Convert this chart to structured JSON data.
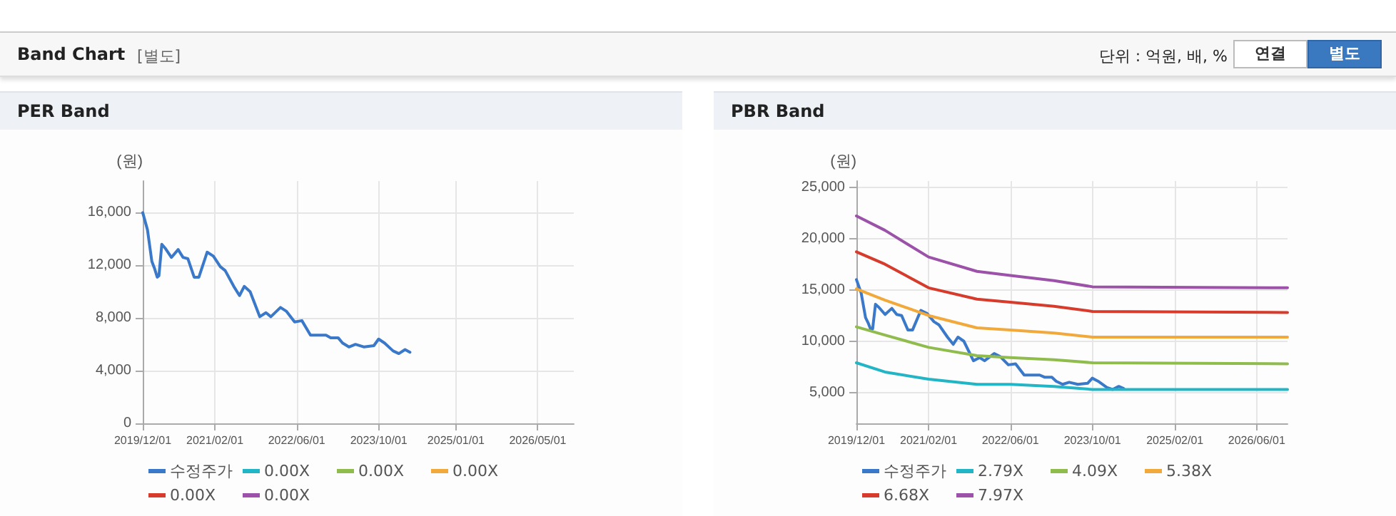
{
  "chart_data": [
    {
      "type": "other",
      "title": "Band Chart",
      "subtitle": "[별도]",
      "annotations": [
        "단위 : 억원, 배, %",
        "연결",
        "별도"
      ]
    },
    {
      "type": "line",
      "title": "PER Band",
      "ylabel": "(원)",
      "ylim": [
        0,
        18400
      ],
      "yticks": [
        0,
        {
          "value": 4000,
          "label": "4,000"
        },
        {
          "value": 8000,
          "label": "8,000"
        },
        {
          "value": 12000,
          "label": "12,000"
        },
        {
          "value": 16000,
          "label": "16,000"
        }
      ],
      "xlim": [
        "2019-12-01",
        "2026-12-01"
      ],
      "xticks": [
        {
          "value": "2019-12-01",
          "label": "2019/12/01"
        },
        {
          "value": "2021-02-01",
          "label": "2021/02/01"
        },
        {
          "value": "2022-06-01",
          "label": "2022/06/01"
        },
        {
          "value": "2023-10-01",
          "label": "2023/10/01"
        },
        {
          "value": "2025-01-01",
          "label": "2025/01/01"
        },
        {
          "value": "2026-05-01",
          "label": "2026/05/01"
        }
      ],
      "grid": true,
      "legend": "bottom",
      "marker": "none",
      "line_style": "solid",
      "series": [
        {
          "name": "수정주가",
          "color": "#3a78c9",
          "x": [
            "2019-12-01",
            "2019-12-29",
            "2020-01-24",
            "2020-02-08",
            "2020-02-25",
            "2020-03-06",
            "2020-03-23",
            "2020-04-12",
            "2020-05-19",
            "2020-06-28",
            "2020-07-27",
            "2020-08-25",
            "2020-10-01",
            "2020-10-29",
            "2020-12-17",
            "2021-01-23",
            "2021-03-05",
            "2021-04-03",
            "2021-05-24",
            "2021-06-27",
            "2021-07-25",
            "2021-08-29",
            "2021-10-25",
            "2021-12-01",
            "2021-12-30",
            "2022-02-25",
            "2022-04-02",
            "2022-05-20",
            "2022-07-02",
            "2022-08-22",
            "2022-09-26",
            "2022-11-22",
            "2022-12-20",
            "2023-02-02",
            "2023-02-28",
            "2023-04-07",
            "2023-05-16",
            "2023-07-06",
            "2023-09-02",
            "2023-09-30",
            "2023-11-04",
            "2023-12-25",
            "2024-01-28",
            "2024-03-05",
            "2024-04-03"
          ],
          "values": [
            16000,
            14700,
            12300,
            11800,
            11100,
            11200,
            13600,
            13300,
            12600,
            13200,
            12600,
            12500,
            11100,
            11100,
            13000,
            12700,
            11900,
            11600,
            10400,
            9700,
            10400,
            10000,
            8100,
            8400,
            8100,
            8800,
            8500,
            7700,
            7800,
            6700,
            6700,
            6700,
            6500,
            6500,
            6100,
            5800,
            6000,
            5800,
            5900,
            6400,
            6100,
            5500,
            5300,
            5600,
            5400
          ]
        },
        {
          "name": "0.00X",
          "color": "#22b5c6"
        },
        {
          "name": "0.00X",
          "color": "#8fbc4c"
        },
        {
          "name": "0.00X",
          "color": "#f2a93b"
        },
        {
          "name": "0.00X",
          "color": "#d63b2b"
        },
        {
          "name": "0.00X",
          "color": "#9b52a8"
        }
      ]
    },
    {
      "type": "line",
      "title": "PBR Band",
      "ylabel": "(원)",
      "ylim": [
        2000,
        25600
      ],
      "yticks": [
        {
          "value": 5000,
          "label": "5,000"
        },
        {
          "value": 10000,
          "label": "10,000"
        },
        {
          "value": 15000,
          "label": "15,000"
        },
        {
          "value": 20000,
          "label": "20,000"
        },
        {
          "value": 25000,
          "label": "25,000"
        }
      ],
      "xlim": [
        "2019-12-01",
        "2026-12-01"
      ],
      "xticks": [
        {
          "value": "2019-12-01",
          "label": "2019/12/01"
        },
        {
          "value": "2021-02-01",
          "label": "2021/02/01"
        },
        {
          "value": "2022-06-01",
          "label": "2022/06/01"
        },
        {
          "value": "2023-10-01",
          "label": "2023/10/01"
        },
        {
          "value": "2025-02-01",
          "label": "2025/02/01"
        },
        {
          "value": "2026-06-01",
          "label": "2026/06/01"
        }
      ],
      "grid": true,
      "legend": "bottom",
      "marker": "none",
      "line_style": "solid",
      "series": [
        {
          "name": "수정주가",
          "color": "#3a78c9",
          "x": [
            "2019-12-01",
            "2019-12-29",
            "2020-01-24",
            "2020-02-08",
            "2020-02-25",
            "2020-03-06",
            "2020-03-23",
            "2020-04-12",
            "2020-05-19",
            "2020-06-28",
            "2020-07-27",
            "2020-08-25",
            "2020-10-01",
            "2020-10-29",
            "2020-12-17",
            "2021-01-23",
            "2021-03-05",
            "2021-04-03",
            "2021-05-24",
            "2021-06-27",
            "2021-07-25",
            "2021-08-29",
            "2021-10-25",
            "2021-12-01",
            "2021-12-30",
            "2022-02-25",
            "2022-04-02",
            "2022-05-20",
            "2022-07-02",
            "2022-08-22",
            "2022-09-26",
            "2022-11-22",
            "2022-12-20",
            "2023-02-02",
            "2023-02-28",
            "2023-04-07",
            "2023-05-16",
            "2023-07-06",
            "2023-09-02",
            "2023-09-30",
            "2023-11-04",
            "2023-12-25",
            "2024-01-28",
            "2024-03-05",
            "2024-04-03"
          ],
          "values": [
            16000,
            14700,
            12300,
            11800,
            11100,
            11200,
            13600,
            13300,
            12600,
            13200,
            12600,
            12500,
            11100,
            11100,
            13000,
            12700,
            11900,
            11600,
            10400,
            9700,
            10400,
            10000,
            8100,
            8400,
            8100,
            8800,
            8500,
            7700,
            7800,
            6700,
            6700,
            6700,
            6500,
            6500,
            6100,
            5800,
            6000,
            5800,
            5900,
            6400,
            6100,
            5500,
            5300,
            5600,
            5400
          ]
        },
        {
          "name": "2.79X",
          "color": "#22b5c6",
          "x": [
            "2019-12-01",
            "2020-05-18",
            "2021-02-01",
            "2021-11-15",
            "2022-06-01",
            "2023-02-15",
            "2023-10-01",
            "2026-12-01"
          ],
          "values": [
            7900,
            7000,
            6300,
            5800,
            5800,
            5600,
            5300,
            5300
          ]
        },
        {
          "name": "4.09X",
          "color": "#8fbc4c",
          "x": [
            "2019-12-01",
            "2020-05-18",
            "2021-02-01",
            "2021-11-15",
            "2022-06-01",
            "2023-02-15",
            "2023-10-01",
            "2026-12-01"
          ],
          "values": [
            11400,
            10600,
            9400,
            8600,
            8400,
            8200,
            7900,
            7800
          ]
        },
        {
          "name": "5.38X",
          "color": "#f2a93b",
          "x": [
            "2019-12-01",
            "2020-05-18",
            "2021-02-01",
            "2021-11-15",
            "2022-06-01",
            "2023-02-15",
            "2023-10-01",
            "2026-12-01"
          ],
          "values": [
            15100,
            14000,
            12500,
            11300,
            11100,
            10800,
            10400,
            10400
          ]
        },
        {
          "name": "6.68X",
          "color": "#d63b2b",
          "x": [
            "2019-12-01",
            "2020-05-18",
            "2021-02-01",
            "2021-11-15",
            "2022-06-01",
            "2023-02-15",
            "2023-10-01",
            "2026-12-01"
          ],
          "values": [
            18700,
            17500,
            15200,
            14100,
            13800,
            13400,
            12900,
            12800
          ]
        },
        {
          "name": "7.97X",
          "color": "#9b52a8",
          "x": [
            "2019-12-01",
            "2020-05-18",
            "2021-02-01",
            "2021-11-15",
            "2022-06-01",
            "2023-02-15",
            "2023-10-01",
            "2026-12-01"
          ],
          "values": [
            22200,
            20800,
            18200,
            16800,
            16400,
            15900,
            15300,
            15200
          ]
        }
      ]
    }
  ]
}
